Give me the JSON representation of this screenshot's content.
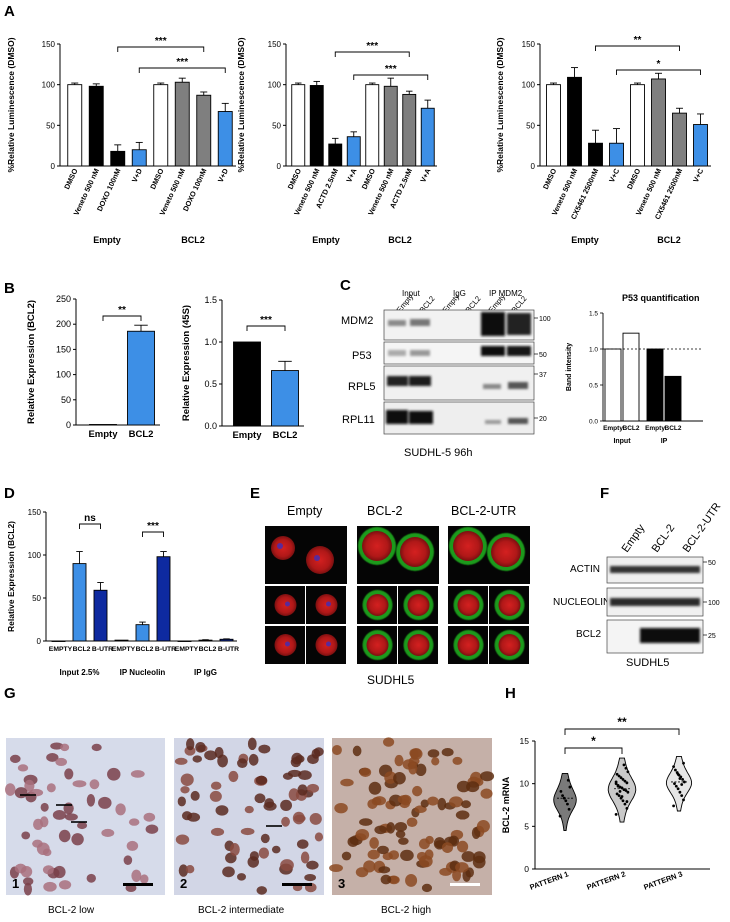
{
  "figure": {
    "panel_letters": [
      "A",
      "B",
      "C",
      "D",
      "E",
      "F",
      "G",
      "H"
    ]
  },
  "colors": {
    "white": "#ffffff",
    "black": "#000000",
    "grey": "#7f7f7f",
    "blue": "#3d8fe6",
    "navy": "#0e2aa0",
    "lightblue": "#4a8fe3"
  },
  "chart_data": [
    {
      "id": "A1",
      "type": "bar",
      "ylabel": "%Relative Luminescence (DMSO)",
      "ylim": [
        0,
        150
      ],
      "yticks": [
        0,
        50,
        100,
        150
      ],
      "categories": [
        "DMSO",
        "Veneto 500 nM",
        "DOXO 100nM",
        "V+D",
        "DMSO",
        "Veneto 500 nM",
        "DOXO 100nM",
        "V+D"
      ],
      "values": [
        100,
        98,
        18,
        20,
        100,
        103,
        87,
        67
      ],
      "errors": [
        2,
        3,
        8,
        9,
        2,
        5,
        4,
        10
      ],
      "fills": [
        "white",
        "black",
        "black",
        "blue",
        "white",
        "grey",
        "grey",
        "blue"
      ],
      "groups": [
        "Empty",
        "BCL2"
      ],
      "significance": [
        {
          "from": 2,
          "to": 6,
          "label": "***"
        },
        {
          "from": 3,
          "to": 7,
          "label": "***"
        }
      ]
    },
    {
      "id": "A2",
      "type": "bar",
      "ylabel": "%Relative Luminescence (DMSO)",
      "ylim": [
        0,
        150
      ],
      "yticks": [
        0,
        50,
        100,
        150
      ],
      "categories": [
        "DMSO",
        "Veneto 500 nM",
        "ACTD 2.5nM",
        "V+A",
        "DMSO",
        "Veneto 500 nM",
        "ACTD 2.5nM",
        "V+A"
      ],
      "values": [
        100,
        99,
        27,
        36,
        100,
        98,
        88,
        71
      ],
      "errors": [
        2,
        5,
        7,
        6,
        2,
        10,
        4,
        10
      ],
      "fills": [
        "white",
        "black",
        "black",
        "blue",
        "white",
        "grey",
        "grey",
        "blue"
      ],
      "groups": [
        "Empty",
        "BCL2"
      ],
      "significance": [
        {
          "from": 2,
          "to": 6,
          "label": "***"
        },
        {
          "from": 3,
          "to": 7,
          "label": "***"
        }
      ]
    },
    {
      "id": "A3",
      "type": "bar",
      "ylabel": "%Relative Luminescence (DMSO)",
      "ylim": [
        0,
        150
      ],
      "yticks": [
        0,
        50,
        100,
        150
      ],
      "categories": [
        "DMSO",
        "Veneto 500 nM",
        "CX5461 2500nM",
        "V+C",
        "DMSO",
        "Veneto 500 nM",
        "CX5461 2500nM",
        "V+C"
      ],
      "values": [
        100,
        109,
        28,
        28,
        100,
        107,
        65,
        51
      ],
      "errors": [
        2,
        12,
        16,
        18,
        2,
        7,
        6,
        13
      ],
      "fills": [
        "white",
        "black",
        "black",
        "blue",
        "white",
        "grey",
        "grey",
        "blue"
      ],
      "groups": [
        "Empty",
        "BCL2"
      ],
      "significance": [
        {
          "from": 2,
          "to": 6,
          "label": "**"
        },
        {
          "from": 3,
          "to": 7,
          "label": "*"
        }
      ]
    },
    {
      "id": "B1",
      "type": "bar",
      "ylabel": "Relative Expression (BCL2)",
      "ylim": [
        0,
        250
      ],
      "yticks": [
        0,
        50,
        100,
        150,
        200,
        250
      ],
      "categories": [
        "Empty",
        "BCL2"
      ],
      "values": [
        1,
        186
      ],
      "errors": [
        0,
        12
      ],
      "fills": [
        "black",
        "blue"
      ],
      "significance": [
        {
          "from": 0,
          "to": 1,
          "label": "**"
        }
      ]
    },
    {
      "id": "B2",
      "type": "bar",
      "ylabel": "Relative Expression (45S)",
      "ylim": [
        0,
        1.5
      ],
      "yticks": [
        "0.0",
        "0.5",
        "1.0",
        "1.5"
      ],
      "categories": [
        "Empty",
        "BCL2"
      ],
      "values": [
        1.0,
        0.66
      ],
      "errors": [
        0,
        0.11
      ],
      "fills": [
        "black",
        "blue"
      ],
      "significance": [
        {
          "from": 0,
          "to": 1,
          "label": "***"
        }
      ]
    },
    {
      "id": "C-quant",
      "type": "bar",
      "title": "P53 quantification",
      "ylabel": "Band intensity",
      "categories": [
        "Empty",
        "BCL2",
        "Empty",
        "BCL2"
      ],
      "values": [
        1.0,
        1.22,
        1.0,
        0.62
      ],
      "fills": [
        "white",
        "white",
        "black",
        "black"
      ],
      "groups": [
        "Input",
        "IP"
      ],
      "reference_line": 1.0
    },
    {
      "id": "D",
      "type": "bar",
      "ylabel": "Relative Expression (BCL2)",
      "ylim": [
        0,
        150
      ],
      "yticks": [
        0,
        50,
        100,
        150
      ],
      "categories": [
        "EMPTY",
        "BCL2",
        "B-UTR",
        "EMPTY",
        "BCL2",
        "B-UTR",
        "EMPTY",
        "BCL2",
        "B-UTR"
      ],
      "values": [
        0,
        90,
        59,
        1,
        19,
        98,
        0,
        1,
        2
      ],
      "errors": [
        0,
        14,
        9,
        0,
        3,
        6,
        0,
        0.5,
        0.5
      ],
      "fills": [
        "blue",
        "blue",
        "navy",
        "blue",
        "blue",
        "navy",
        "blue",
        "blue",
        "navy"
      ],
      "groups": [
        "Input 2.5%",
        "IP Nucleolin",
        "IP IgG"
      ],
      "significance": [
        {
          "from": 1,
          "to": 2,
          "label": "ns"
        },
        {
          "from": 4,
          "to": 5,
          "label": "***"
        }
      ]
    },
    {
      "id": "H",
      "type": "violin",
      "ylabel": "BCL-2 mRNA",
      "ylim": [
        0,
        15
      ],
      "yticks": [
        0,
        5,
        10,
        15
      ],
      "categories": [
        "PATTERN 1",
        "PATTERN 2",
        "PATTERN 3"
      ],
      "medians": [
        8.3,
        9.4,
        10.2
      ],
      "points": [
        [
          6.2,
          7.0,
          7.6,
          8.0,
          8.3,
          8.6,
          9.1,
          9.6,
          10.4
        ],
        [
          6.4,
          7.1,
          7.6,
          8.0,
          8.3,
          8.6,
          8.8,
          9.0,
          9.2,
          9.3,
          9.5,
          9.6,
          9.8,
          10.0,
          10.1,
          10.3,
          10.5,
          10.7,
          10.9,
          11.1,
          11.4,
          11.8,
          12.2,
          8.5,
          9.1,
          9.7,
          10.2,
          7.9
        ],
        [
          7.4,
          8.1,
          8.6,
          9.0,
          9.4,
          9.7,
          10.0,
          10.2,
          10.5,
          10.8,
          11.0,
          11.3,
          11.6,
          12.0,
          12.4,
          9.9,
          10.6,
          11.1
        ]
      ],
      "significance": [
        {
          "from": 0,
          "to": 1,
          "label": "*"
        },
        {
          "from": 0,
          "to": 2,
          "label": "**"
        }
      ]
    }
  ],
  "panelC": {
    "header_groups": [
      "Input",
      "IgG",
      "IP MDM2"
    ],
    "lane_labels": [
      "Empty",
      "BCL2",
      "Empty",
      "BCL2",
      "Empty",
      "BCL2"
    ],
    "rows": [
      "MDM2",
      "P53",
      "RPL5",
      "RPL11"
    ],
    "markers": [
      "100",
      "50",
      "37",
      "20"
    ],
    "caption": "SUDHL-5 96h",
    "quant_group_labels": [
      "Input",
      "IP"
    ],
    "quant_x_labels": [
      "Empty",
      "BCL2",
      "Empty",
      "BCL2"
    ]
  },
  "panelE": {
    "columns": [
      "Empty",
      "BCL-2",
      "BCL-2-UTR"
    ],
    "caption": "SUDHL5"
  },
  "panelF": {
    "lanes": [
      "Empty",
      "BCL-2",
      "BCL-2-UTR"
    ],
    "rows": [
      "ACTIN",
      "NUCLEOLIN",
      "BCL2"
    ],
    "markers": [
      "50",
      "100",
      "25"
    ],
    "caption": "SUDHL5"
  },
  "panelG": {
    "image_numbers": [
      "1",
      "2",
      "3"
    ],
    "captions": [
      "BCL-2 low",
      "BCL-2 intermediate",
      "BCL-2 high"
    ]
  }
}
